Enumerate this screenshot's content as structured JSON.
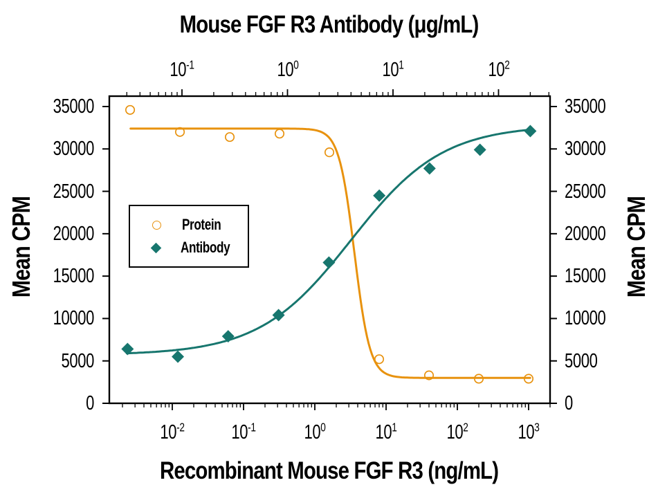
{
  "chart_data": {
    "type": "scatter",
    "subtype": "dose-response-neutralization-4PL",
    "background": "#FFFFFF",
    "top_axis": {
      "title": "Mouse FGF R3 Antibody (μg/mL)",
      "scale": "log",
      "unit": "μg/mL",
      "tick_exponents": [
        -1,
        0,
        1,
        2
      ],
      "tick_labels": [
        "10^-1",
        "10^0",
        "10^1",
        "10^2"
      ]
    },
    "bottom_axis": {
      "title": "Recombinant Mouse FGF R3 (ng/mL)",
      "scale": "log",
      "unit": "ng/mL",
      "tick_exponents": [
        -2,
        -1,
        0,
        1,
        2,
        3
      ],
      "tick_labels": [
        "10^-2",
        "10^-1",
        "10^0",
        "10^1",
        "10^2",
        "10^3"
      ]
    },
    "left_axis": {
      "title": "Mean CPM",
      "min": 0,
      "max": 35000,
      "ticks": [
        0,
        5000,
        10000,
        15000,
        20000,
        25000,
        30000,
        35000
      ]
    },
    "right_axis": {
      "title": "Mean CPM",
      "min": 0,
      "max": 35000,
      "ticks": [
        0,
        5000,
        10000,
        15000,
        20000,
        25000,
        30000,
        35000
      ]
    },
    "legend": {
      "position": "inside-left",
      "items": [
        "Protein",
        "Antibody"
      ]
    },
    "series": [
      {
        "name": "Protein",
        "axis": "bottom",
        "marker": "open-circle",
        "color": "#E8920E",
        "x": [
          0.00256,
          0.0128,
          0.064,
          0.32,
          1.6,
          8,
          40,
          200,
          1000
        ],
        "y": [
          34600,
          32000,
          31400,
          31800,
          29600,
          5200,
          3300,
          2900,
          2900
        ],
        "fit_4pl": {
          "top": 32400,
          "bottom": 3000,
          "ec50": 3.6,
          "hill": -4,
          "curve_domain": [
            0.0026,
            1050
          ]
        }
      },
      {
        "name": "Antibody",
        "axis": "top",
        "marker": "filled-diamond",
        "color": "#17766E",
        "x": [
          0.0305,
          0.0914,
          0.274,
          0.823,
          2.47,
          7.41,
          22.2,
          66.7,
          200
        ],
        "y": [
          6400,
          5500,
          7900,
          10400,
          16600,
          24500,
          27700,
          29900,
          32100
        ],
        "fit_4pl": {
          "top": 32800,
          "bottom": 5700,
          "ec50": 4.0,
          "hill": 1,
          "curve_domain": [
            0.03,
            200
          ]
        }
      }
    ],
    "colors": {
      "protein": "#E8920E",
      "antibody": "#17766E",
      "axis": "#000000",
      "text": "#000000"
    }
  }
}
